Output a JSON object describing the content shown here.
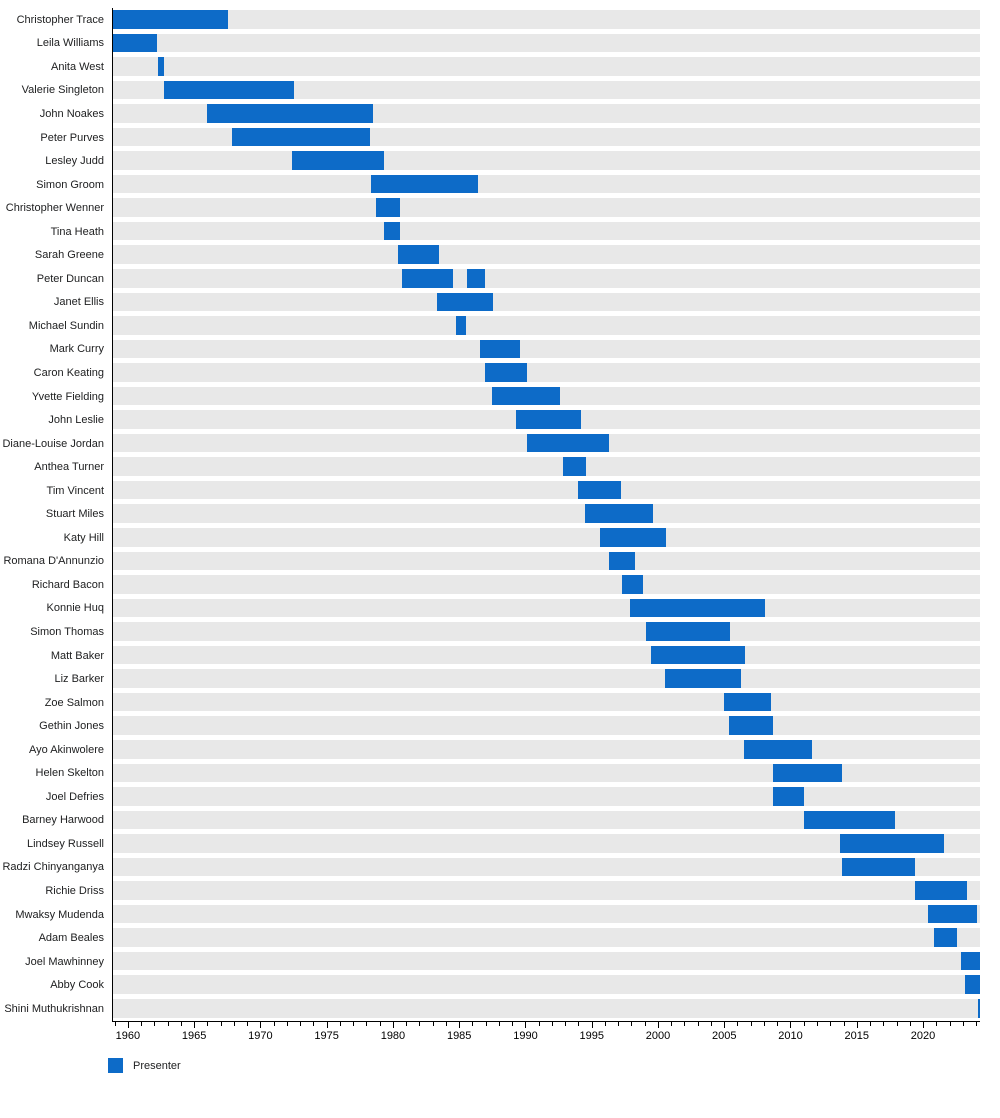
{
  "colors": {
    "bar": "#0d6bc8",
    "row_band": "#e8e8e8",
    "axis": "#000000",
    "label_text": "#202122"
  },
  "legend": {
    "label": "Presenter"
  },
  "chart_data": {
    "type": "bar",
    "variant": "gantt-timeline",
    "orientation": "horizontal",
    "title": "",
    "xlabel": "",
    "ylabel": "",
    "grid": false,
    "legend_position": "bottom-left",
    "legend_entries": [
      "Presenter"
    ],
    "x_axis": {
      "min": 1958.8,
      "max": 2024.3,
      "major_tick_years": [
        1960,
        1965,
        1970,
        1975,
        1980,
        1985,
        1990,
        1995,
        2000,
        2005,
        2010,
        2015,
        2020
      ],
      "minor_tick_interval_years": 1,
      "tick_labels": [
        "1960",
        "1965",
        "1970",
        "1975",
        "1980",
        "1985",
        "1990",
        "1995",
        "2000",
        "2005",
        "2010",
        "2015",
        "2020"
      ]
    },
    "presenters": [
      {
        "name": "Christopher Trace",
        "periods": [
          [
            1958.8,
            1967.55
          ]
        ]
      },
      {
        "name": "Leila Williams",
        "periods": [
          [
            1958.8,
            1962.2
          ]
        ]
      },
      {
        "name": "Anita West",
        "periods": [
          [
            1962.3,
            1962.7
          ]
        ]
      },
      {
        "name": "Valerie Singleton",
        "periods": [
          [
            1962.7,
            1972.55
          ]
        ]
      },
      {
        "name": "John Noakes",
        "periods": [
          [
            1965.95,
            1978.5
          ]
        ]
      },
      {
        "name": "Peter Purves",
        "periods": [
          [
            1967.85,
            1978.25
          ]
        ]
      },
      {
        "name": "Lesley Judd",
        "periods": [
          [
            1972.4,
            1979.35
          ]
        ]
      },
      {
        "name": "Simon Groom",
        "periods": [
          [
            1978.35,
            1986.45
          ]
        ]
      },
      {
        "name": "Christopher Wenner",
        "periods": [
          [
            1978.7,
            1980.5
          ]
        ]
      },
      {
        "name": "Tina Heath",
        "periods": [
          [
            1979.3,
            1980.5
          ]
        ]
      },
      {
        "name": "Sarah Greene",
        "periods": [
          [
            1980.35,
            1983.45
          ]
        ]
      },
      {
        "name": "Peter Duncan",
        "periods": [
          [
            1980.65,
            1984.5
          ],
          [
            1985.6,
            1986.95
          ]
        ]
      },
      {
        "name": "Janet Ellis",
        "periods": [
          [
            1983.3,
            1987.55
          ]
        ]
      },
      {
        "name": "Michael Sundin",
        "periods": [
          [
            1984.75,
            1985.5
          ]
        ]
      },
      {
        "name": "Mark Curry",
        "periods": [
          [
            1986.6,
            1989.6
          ]
        ]
      },
      {
        "name": "Caron Keating",
        "periods": [
          [
            1986.95,
            1990.1
          ]
        ]
      },
      {
        "name": "Yvette Fielding",
        "periods": [
          [
            1987.5,
            1992.6
          ]
        ]
      },
      {
        "name": "John Leslie",
        "periods": [
          [
            1989.3,
            1994.2
          ]
        ]
      },
      {
        "name": "Diane-Louise Jordan",
        "periods": [
          [
            1990.1,
            1996.3
          ]
        ]
      },
      {
        "name": "Anthea Turner",
        "periods": [
          [
            1992.8,
            1994.6
          ]
        ]
      },
      {
        "name": "Tim Vincent",
        "periods": [
          [
            1993.95,
            1997.2
          ]
        ]
      },
      {
        "name": "Stuart Miles",
        "periods": [
          [
            1994.5,
            1999.6
          ]
        ]
      },
      {
        "name": "Katy Hill",
        "periods": [
          [
            1995.6,
            2000.6
          ]
        ]
      },
      {
        "name": "Romana D'Annunzio",
        "periods": [
          [
            1996.3,
            1998.3
          ]
        ]
      },
      {
        "name": "Richard Bacon",
        "periods": [
          [
            1997.3,
            1998.9
          ]
        ]
      },
      {
        "name": "Konnie Huq",
        "periods": [
          [
            1997.9,
            2008.1
          ]
        ]
      },
      {
        "name": "Simon Thomas",
        "periods": [
          [
            1999.1,
            2005.45
          ]
        ]
      },
      {
        "name": "Matt Baker",
        "periods": [
          [
            1999.5,
            2006.55
          ]
        ]
      },
      {
        "name": "Liz Barker",
        "periods": [
          [
            2000.5,
            2006.3
          ]
        ]
      },
      {
        "name": "Zoe Salmon",
        "periods": [
          [
            2004.95,
            2008.55
          ]
        ]
      },
      {
        "name": "Gethin Jones",
        "periods": [
          [
            2005.35,
            2008.7
          ]
        ]
      },
      {
        "name": "Ayo Akinwolere",
        "periods": [
          [
            2006.5,
            2011.6
          ]
        ]
      },
      {
        "name": "Helen Skelton",
        "periods": [
          [
            2008.7,
            2013.9
          ]
        ]
      },
      {
        "name": "Joel Defries",
        "periods": [
          [
            2008.7,
            2011.0
          ]
        ]
      },
      {
        "name": "Barney Harwood",
        "periods": [
          [
            2011.05,
            2017.9
          ]
        ]
      },
      {
        "name": "Lindsey Russell",
        "periods": [
          [
            2013.75,
            2021.6
          ]
        ]
      },
      {
        "name": "Radzi Chinyanganya",
        "periods": [
          [
            2013.9,
            2019.4
          ]
        ]
      },
      {
        "name": "Richie Driss",
        "periods": [
          [
            2019.4,
            2023.3
          ]
        ]
      },
      {
        "name": "Mwaksy Mudenda",
        "periods": [
          [
            2020.4,
            2024.1
          ]
        ]
      },
      {
        "name": "Adam Beales",
        "periods": [
          [
            2020.8,
            2022.6
          ]
        ]
      },
      {
        "name": "Joel Mawhinney",
        "periods": [
          [
            2022.9,
            2024.3
          ]
        ]
      },
      {
        "name": "Abby Cook",
        "periods": [
          [
            2023.2,
            2024.3
          ]
        ]
      },
      {
        "name": "Shini Muthukrishnan",
        "periods": [
          [
            2024.15,
            2024.3
          ]
        ]
      }
    ]
  }
}
